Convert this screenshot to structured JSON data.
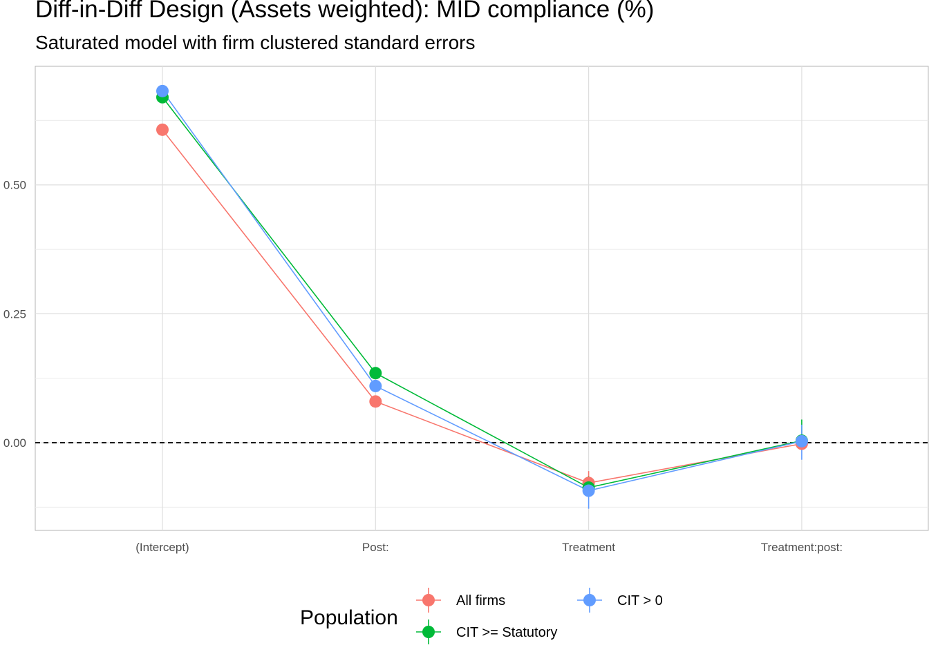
{
  "title": "Diff-in-Diff Design (Assets weighted): MID compliance (%)",
  "subtitle": "Saturated model with firm clustered standard errors",
  "chart_data": {
    "type": "line",
    "title": "Diff-in-Diff Design (Assets weighted): MID compliance (%)",
    "subtitle": "Saturated model with firm clustered standard errors",
    "xlabel": "",
    "ylabel": "",
    "categories": [
      "(Intercept)",
      "Post:",
      "Treatment",
      "Treatment:post:"
    ],
    "y_ticks": [
      0.0,
      0.25,
      0.5
    ],
    "y_tick_labels": [
      "0.00",
      "0.25",
      "0.50"
    ],
    "ylim": [
      -0.17,
      0.73
    ],
    "grid": true,
    "reference_line": {
      "y": 0,
      "style": "dashed"
    },
    "legend": {
      "title": "Population",
      "placement": "bottom"
    },
    "series": [
      {
        "name": "All firms",
        "color": "#F8766D",
        "values": [
          0.607,
          0.08,
          -0.078,
          -0.002
        ],
        "lower": [
          0.607,
          0.08,
          -0.095,
          -0.008
        ],
        "upper": [
          0.607,
          0.08,
          -0.055,
          0.004
        ]
      },
      {
        "name": "CIT >= Statutory",
        "color": "#00BA38",
        "values": [
          0.67,
          0.135,
          -0.087,
          0.004
        ],
        "lower": [
          0.67,
          0.135,
          -0.105,
          -0.01
        ],
        "upper": [
          0.67,
          0.135,
          -0.065,
          0.045
        ]
      },
      {
        "name": "CIT > 0",
        "color": "#619CFF",
        "values": [
          0.682,
          0.11,
          -0.093,
          0.003
        ],
        "lower": [
          0.682,
          0.11,
          -0.128,
          -0.033
        ],
        "upper": [
          0.682,
          0.11,
          -0.07,
          0.035
        ]
      }
    ]
  }
}
